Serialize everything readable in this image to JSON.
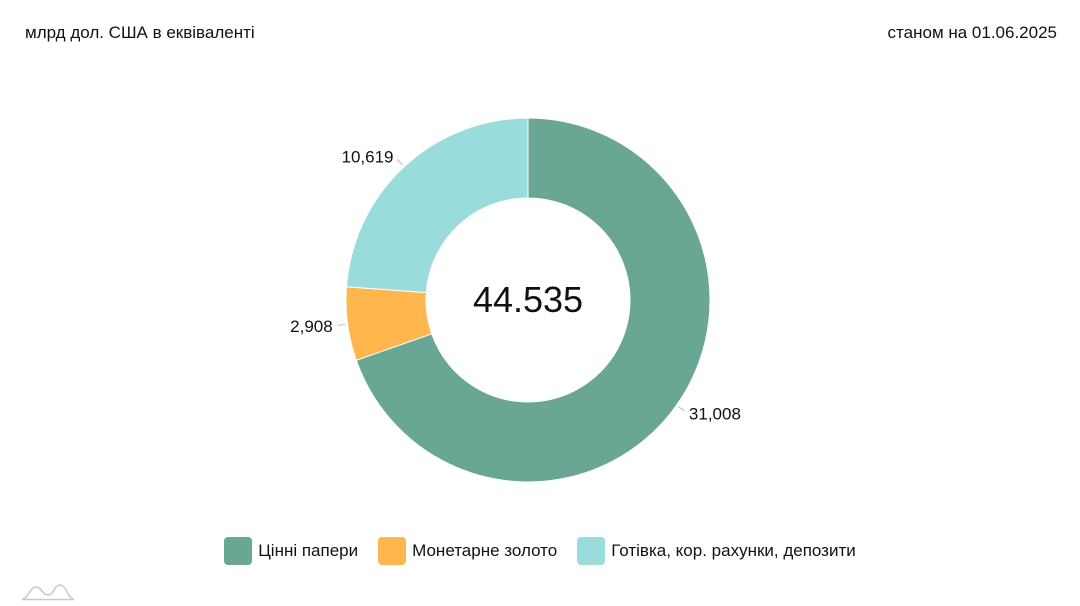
{
  "header": {
    "units": "млрд дол. США в еквіваленті",
    "as_of": "станом на 01.06.2025"
  },
  "chart_data": {
    "type": "pie",
    "center_label": "44.535",
    "categories": [
      "Цінні папери",
      "Монетарне золото",
      "Готівка, кор. рахунки, депозити"
    ],
    "values": [
      31.008,
      2.908,
      10.619
    ],
    "data_labels": [
      "31,008",
      "2,908",
      "10,619"
    ],
    "colors": [
      "#69a794",
      "#ffb74d",
      "#9adcdc"
    ],
    "legend_position": "bottom"
  }
}
